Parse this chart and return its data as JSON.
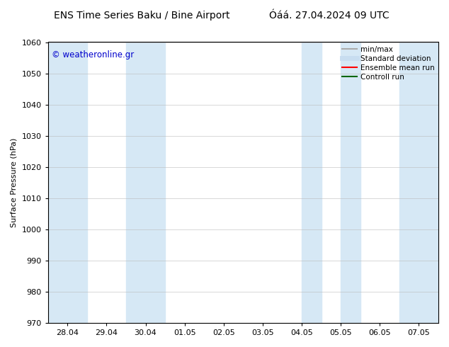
{
  "title_left": "ENS Time Series Baku / Bine Airport",
  "title_right": "Óáá. 27.04.2024 09 UTC",
  "ylabel": "Surface Pressure (hPa)",
  "ylim": [
    970,
    1060
  ],
  "yticks": [
    970,
    980,
    990,
    1000,
    1010,
    1020,
    1030,
    1040,
    1050,
    1060
  ],
  "xtick_labels": [
    "28.04",
    "29.04",
    "30.04",
    "01.05",
    "02.05",
    "03.05",
    "04.05",
    "05.05",
    "06.05",
    "07.05"
  ],
  "x_positions": [
    0,
    1,
    2,
    3,
    4,
    5,
    6,
    7,
    8,
    9
  ],
  "xlim": [
    -0.5,
    9.5
  ],
  "watermark": "© weatheronline.gr",
  "watermark_color": "#0000cc",
  "background_color": "#ffffff",
  "plot_bg_color": "#ffffff",
  "shaded_bands": [
    {
      "x_start": -0.5,
      "x_end": 0.5
    },
    {
      "x_start": 1.5,
      "x_end": 2.5
    },
    {
      "x_start": 6.0,
      "x_end": 6.5
    },
    {
      "x_start": 7.0,
      "x_end": 7.5
    },
    {
      "x_start": 8.5,
      "x_end": 9.5
    }
  ],
  "shaded_color": "#d6e8f5",
  "grid_color": "#bbbbbb",
  "legend_items": [
    {
      "label": "min/max",
      "color": "#aaaaaa",
      "lw": 1.5,
      "style": "solid"
    },
    {
      "label": "Standard deviation",
      "color": "#c8ddf0",
      "lw": 5,
      "style": "solid"
    },
    {
      "label": "Ensemble mean run",
      "color": "#ff0000",
      "lw": 1.5,
      "style": "solid"
    },
    {
      "label": "Controll run",
      "color": "#006600",
      "lw": 1.5,
      "style": "solid"
    }
  ],
  "title_fontsize": 10,
  "axis_fontsize": 8,
  "tick_fontsize": 8,
  "legend_fontsize": 7.5
}
